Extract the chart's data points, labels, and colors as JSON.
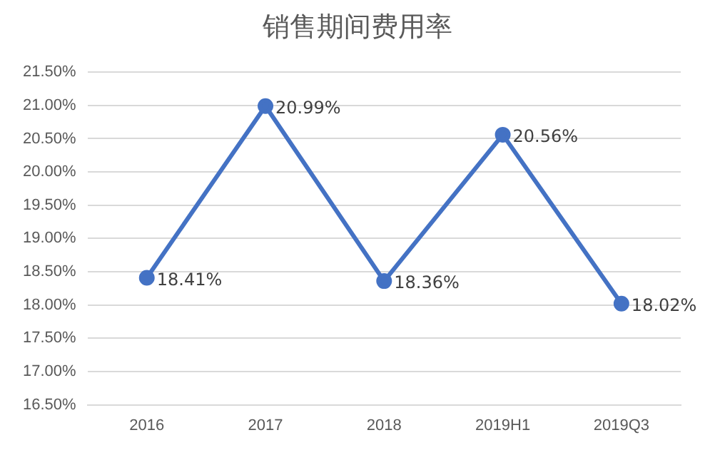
{
  "chart_data": {
    "type": "line",
    "title": "销售期间费用率",
    "categories": [
      "2016",
      "2017",
      "2018",
      "2019H1",
      "2019Q3"
    ],
    "series": [
      {
        "color": "#4472c4",
        "values": [
          18.41,
          20.99,
          18.36,
          20.56,
          18.02
        ],
        "value_labels": [
          "18.41%",
          "20.99%",
          "18.36%",
          "20.56%",
          "18.02%"
        ]
      }
    ],
    "ylim": [
      16.5,
      21.5
    ],
    "yticks": [
      {
        "value": 16.5,
        "label": "16.50%"
      },
      {
        "value": 17,
        "label": "17.00%"
      },
      {
        "value": 17.5,
        "label": "17.50%"
      },
      {
        "value": 18,
        "label": "18.00%"
      },
      {
        "value": 18.5,
        "label": "18.50%"
      },
      {
        "value": 19,
        "label": "19.00%"
      },
      {
        "value": 19.5,
        "label": "19.50%"
      },
      {
        "value": 20,
        "label": "20.00%"
      },
      {
        "value": 20.5,
        "label": "20.50%"
      },
      {
        "value": 21,
        "label": "21.00%"
      },
      {
        "value": 21.5,
        "label": "21.50%"
      }
    ],
    "grid": "y",
    "legend": false,
    "marker": "circle",
    "line_style": "solid"
  }
}
